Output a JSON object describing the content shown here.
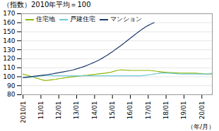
{
  "chart_data": {
    "type": "line",
    "title": "（指数）2010年平均＝100",
    "xlabel": "（年/月）",
    "xlim": [
      -1,
      127
    ],
    "xticks": [
      {
        "value": 0,
        "label": "2010/1"
      },
      {
        "value": 12,
        "label": "11/01"
      },
      {
        "value": 24,
        "label": "12/01"
      },
      {
        "value": 36,
        "label": "13/01"
      },
      {
        "value": 48,
        "label": "14/01"
      },
      {
        "value": 60,
        "label": "15/01"
      },
      {
        "value": 72,
        "label": "16/01"
      },
      {
        "value": 84,
        "label": "17/01"
      },
      {
        "value": 96,
        "label": "18/01"
      },
      {
        "value": 108,
        "label": "19/01"
      },
      {
        "value": 120,
        "label": "20/01"
      }
    ],
    "ylim": [
      80,
      170
    ],
    "yticks": [
      80,
      90,
      100,
      110,
      120,
      130,
      140,
      150,
      160,
      170
    ],
    "grid": true,
    "legend": "upper left",
    "series": [
      {
        "name": "住宅地",
        "color": "#8db600",
        "values": [
          103,
          102.5,
          102,
          101.5,
          101,
          100.5,
          100,
          99.5,
          99,
          98.5,
          98,
          97.5,
          97,
          96.5,
          96,
          96,
          96,
          96.2,
          96.4,
          96.6,
          96.8,
          97,
          97.2,
          97.5,
          97.8,
          98,
          98.2,
          98.5,
          98.8,
          99,
          99.2,
          99.4,
          99.6,
          99.8,
          100,
          100.2,
          100.4,
          100.6,
          100.8,
          101,
          101.2,
          101.4,
          101.5,
          101.6,
          101.8,
          102,
          102.2,
          102.4,
          102.6,
          102.8,
          103,
          103.2,
          103.4,
          103.6,
          103.8,
          104,
          104.2,
          104.5,
          104.8,
          105.0,
          105.5,
          106,
          106.5,
          107,
          107.2,
          107.4,
          107.5,
          107.5,
          107.4,
          107.3,
          107.2,
          107.1,
          107,
          107,
          107,
          107,
          107,
          107,
          107,
          107,
          107,
          107,
          107,
          107,
          107,
          107,
          106.8,
          106.6,
          106.4,
          106.2,
          106,
          105.8,
          105.6,
          105.4,
          105.2,
          105,
          104.9,
          104.8,
          104.7,
          104.6,
          104.5,
          104.4,
          104.3,
          104.2,
          104.1,
          104,
          104,
          104,
          104,
          104,
          104,
          104,
          104,
          104,
          104,
          104,
          104,
          103.8,
          103.6,
          103.5,
          103.4,
          103.3,
          103.2,
          103.1,
          103,
          103,
          103,
          103.2,
          103.5
        ]
      },
      {
        "name": "戸建住宅",
        "color": "#6fc8d8",
        "values": [
          99,
          99,
          99,
          99,
          99.2,
          99.4,
          99.6,
          99.8,
          100,
          100.2,
          100.4,
          100.6,
          100.8,
          101,
          101.2,
          101.4,
          101.5,
          101.5,
          101.4,
          101.3,
          101.2,
          101.1,
          101,
          101,
          101,
          101,
          101,
          101,
          101,
          101,
          101,
          101,
          101,
          101,
          101,
          101,
          101,
          101,
          101,
          101,
          101,
          101,
          101,
          101,
          101,
          101,
          101,
          101,
          101,
          101,
          101,
          101,
          101,
          101,
          101,
          101,
          101,
          101,
          101,
          101,
          101,
          101,
          101,
          101,
          101,
          101,
          101,
          101,
          101,
          101,
          101,
          101,
          101,
          101,
          101,
          101,
          101,
          101,
          101,
          101,
          101.2,
          101.4,
          101.6,
          101.8,
          102,
          102.2,
          102.5,
          102.8,
          103,
          103.2,
          103.5,
          103.8,
          104,
          104.2,
          104.2,
          104.2,
          104.1,
          104.0,
          103.9,
          103.8,
          103.7,
          103.6,
          103.5,
          103.4,
          103.3,
          103.2,
          103.1,
          103.0,
          103.0,
          103.0,
          103.0,
          103.0,
          103.0,
          103.0,
          103.0,
          103.0,
          103.0,
          103.0,
          103.0,
          103.0,
          103.0,
          103.0,
          103.0,
          103.0,
          103.0,
          103.0,
          103.5,
          104.0,
          104.2,
          104.5
        ]
      },
      {
        "name": "マンション",
        "color": "#1a3a6b",
        "values": [
          99,
          99.2,
          99.4,
          99.6,
          99.8,
          100,
          100.2,
          100.4,
          100.6,
          100.8,
          101,
          101.2,
          101.4,
          101.6,
          101.8,
          102,
          102.2,
          102.5,
          102.8,
          103.0,
          103.3,
          103.6,
          103.9,
          104.2,
          104.5,
          104.8,
          105.1,
          105.4,
          105.7,
          106.0,
          106.3,
          106.6,
          107.0,
          107.4,
          107.8,
          108.3,
          108.8,
          109.3,
          109.8,
          110.3,
          110.8,
          111.4,
          112.0,
          112.7,
          113.4,
          114.1,
          114.8,
          115.5,
          116.2,
          117.0,
          117.8,
          118.6,
          119.5,
          120.4,
          121.4,
          122.4,
          123.4,
          124.5,
          125.6,
          126.7,
          127.8,
          129.0,
          130.2,
          131.4,
          132.6,
          133.8,
          135.0,
          136.3,
          137.6,
          138.9,
          140.2,
          141.5,
          142.8,
          144.1,
          145.4,
          146.7,
          148.0,
          149.3,
          150.5,
          151.7,
          152.9,
          154.0,
          155.1,
          156.1,
          157.0,
          157.9,
          158.7,
          159.4,
          160.0
        ]
      }
    ]
  }
}
